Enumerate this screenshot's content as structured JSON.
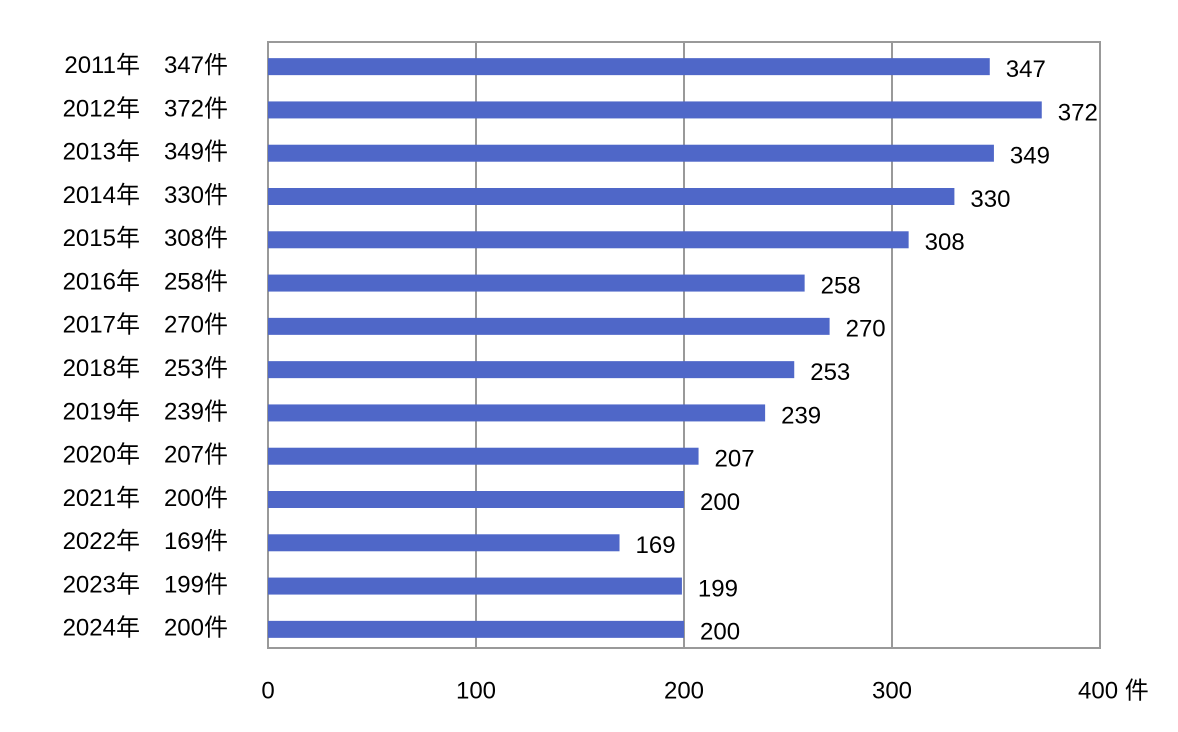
{
  "chart_data": {
    "type": "hbar",
    "categories": [
      "2011年　347件",
      "2012年　372件",
      "2013年　349件",
      "2014年　330件",
      "2015年　308件",
      "2016年　258件",
      "2017年　270件",
      "2018年　253件",
      "2019年　239件",
      "2020年　207件",
      "2021年　200件",
      "2022年　169件",
      "2023年　199件",
      "2024年　200件"
    ],
    "values": [
      347,
      372,
      349,
      330,
      308,
      258,
      270,
      253,
      239,
      207,
      200,
      169,
      199,
      200
    ],
    "color": "#4f67c8",
    "xlim": [
      0,
      400
    ],
    "xticks": [
      0,
      100,
      200,
      300,
      {
        "value": 400,
        "label": "400 件"
      }
    ],
    "grid": true
  }
}
